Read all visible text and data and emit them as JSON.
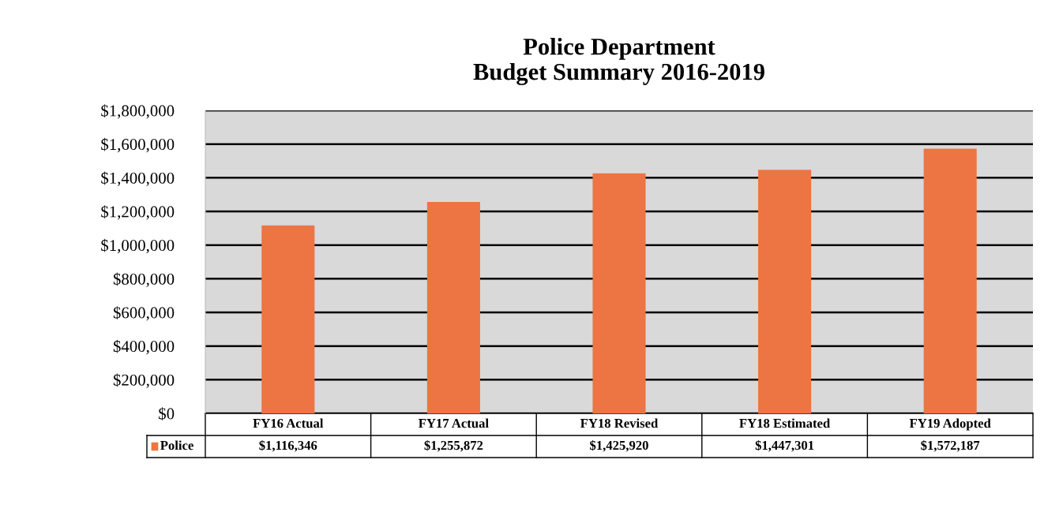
{
  "chart_data": {
    "type": "bar",
    "title": "Police Department\nBudget Summary 2016-2019",
    "categories": [
      "FY16 Actual",
      "FY17 Actual",
      "FY18 Revised",
      "FY18 Estimated",
      "FY19 Adopted"
    ],
    "series": [
      {
        "name": "Police",
        "color": "#ed7443",
        "values": [
          1116346,
          1255872,
          1425920,
          1447301,
          1572187
        ],
        "value_labels": [
          "$1,116,346",
          "$1,255,872",
          "$1,425,920",
          "$1,447,301",
          "$1,572,187"
        ]
      }
    ],
    "ylim": [
      0,
      1800000
    ],
    "yticks": [
      {
        "value": 0,
        "label": "$0"
      },
      {
        "value": 200000,
        "label": "$200,000"
      },
      {
        "value": 400000,
        "label": "$400,000"
      },
      {
        "value": 600000,
        "label": "$600,000"
      },
      {
        "value": 800000,
        "label": "$800,000"
      },
      {
        "value": 1000000,
        "label": "$1,000,000"
      },
      {
        "value": 1200000,
        "label": "$1,200,000"
      },
      {
        "value": 1400000,
        "label": "$1,400,000"
      },
      {
        "value": 1600000,
        "label": "$1,600,000"
      },
      {
        "value": 1800000,
        "label": "$1,800,000"
      }
    ],
    "grid": "y"
  }
}
